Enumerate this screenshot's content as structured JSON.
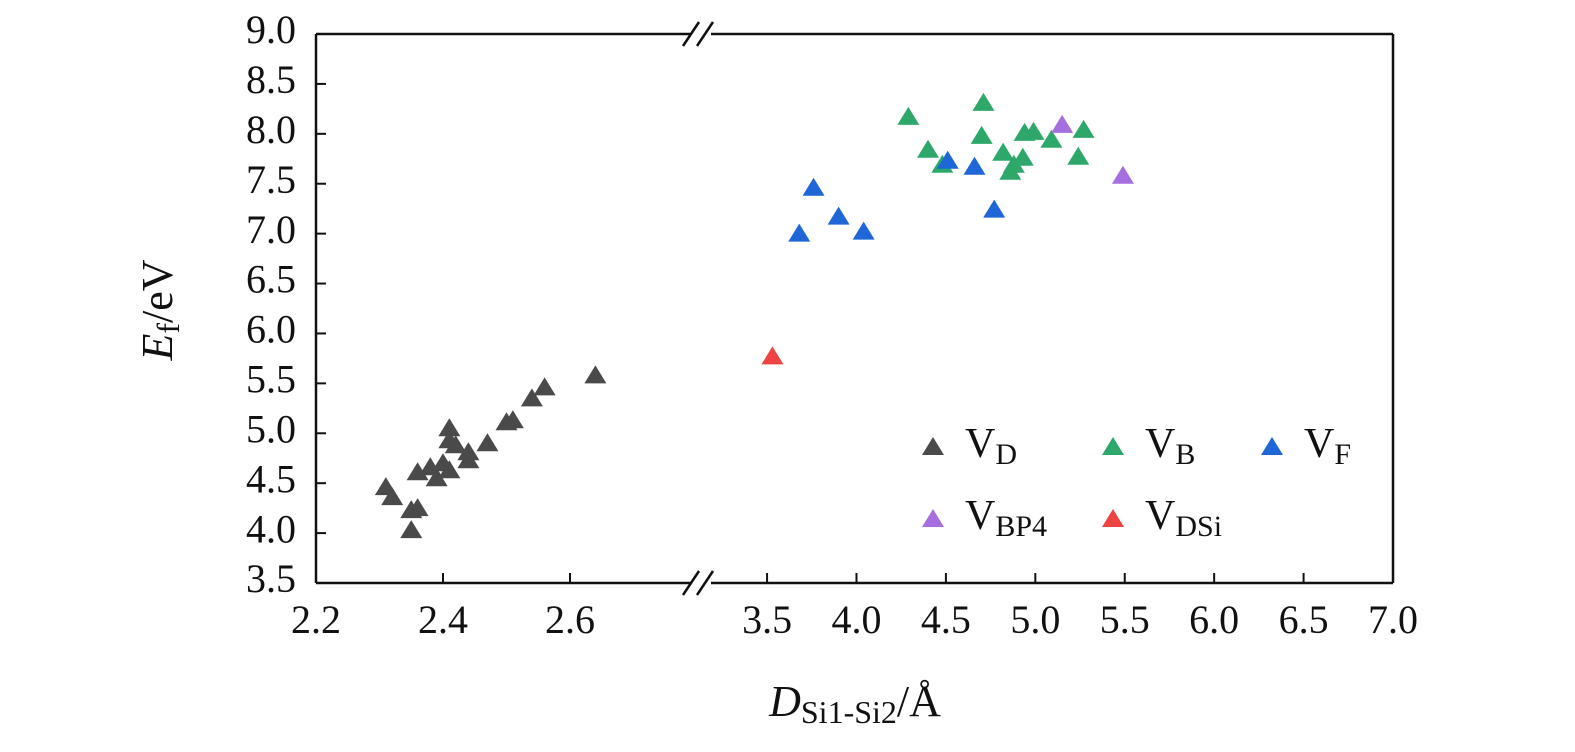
{
  "chart_data": {
    "type": "scatter",
    "x_label": {
      "main": "D",
      "sub": "Si1-Si2",
      "unit": "/Å"
    },
    "y_label": {
      "main": "E",
      "sub": "f",
      "unit": "/eV"
    },
    "x_segments": [
      {
        "xlim": [
          2.2,
          2.8
        ],
        "xticks": [
          2.2,
          2.4,
          2.6
        ]
      },
      {
        "xlim": [
          3.125,
          7.0
        ],
        "xticks": [
          3.5,
          {
            "value": 4,
            "label": "4.0"
          },
          4.5,
          {
            "value": 5,
            "label": "5.0"
          },
          5.5,
          {
            "value": 6,
            "label": "6.0"
          },
          6.5,
          {
            "value": 7,
            "label": "7.0"
          }
        ]
      }
    ],
    "ylim": [
      3.5,
      9.0
    ],
    "yticks": [
      3.5,
      {
        "value": 4,
        "label": "4.0"
      },
      4.5,
      {
        "value": 5,
        "label": "5.0"
      },
      5.5,
      {
        "value": 6,
        "label": "6.0"
      },
      6.5,
      {
        "value": 7,
        "label": "7.0"
      },
      7.5,
      {
        "value": 8,
        "label": "8.0"
      },
      8.5,
      {
        "value": 9,
        "label": "9.0"
      }
    ],
    "series": [
      {
        "name": "V",
        "subscript": "D",
        "color": "#4a4a4a",
        "x": [
          2.31,
          2.32,
          2.35,
          2.35,
          2.36,
          2.36,
          2.38,
          2.39,
          2.4,
          2.41,
          2.41,
          2.41,
          2.42,
          2.44,
          2.44,
          2.47,
          2.5,
          2.51,
          2.54,
          2.56,
          2.64
        ],
        "values": [
          4.46,
          4.36,
          4.23,
          4.03,
          4.25,
          4.61,
          4.66,
          4.55,
          4.7,
          4.63,
          4.93,
          5.05,
          4.88,
          4.81,
          4.73,
          4.9,
          5.11,
          5.13,
          5.35,
          5.46,
          5.58
        ]
      },
      {
        "name": "V",
        "subscript": "B",
        "color": "#2ea86a",
        "x": [
          4.29,
          4.4,
          4.48,
          4.71,
          4.7,
          4.82,
          4.86,
          4.88,
          4.93,
          4.94,
          4.99,
          5.09,
          5.24,
          5.27
        ],
        "values": [
          8.17,
          7.84,
          7.69,
          8.31,
          7.98,
          7.81,
          7.62,
          7.69,
          7.76,
          8.01,
          8.02,
          7.94,
          7.77,
          8.04
        ]
      },
      {
        "name": "V",
        "subscript": "F",
        "color": "#1f66d6",
        "x": [
          3.68,
          3.76,
          3.9,
          4.04,
          4.51,
          4.66,
          4.77
        ],
        "values": [
          7.0,
          7.46,
          7.17,
          7.02,
          7.73,
          7.67,
          7.24
        ]
      },
      {
        "name": "V",
        "subscript": "BP4",
        "color": "#a66fdf",
        "x": [
          5.15,
          5.49
        ],
        "values": [
          8.09,
          7.58
        ]
      },
      {
        "name": "V",
        "subscript": "DSi",
        "color": "#ee4343",
        "x": [
          3.53
        ],
        "values": [
          5.77
        ]
      }
    ]
  }
}
